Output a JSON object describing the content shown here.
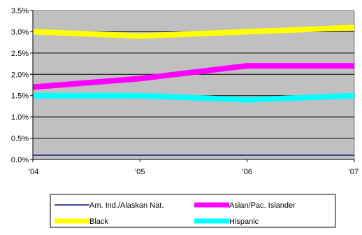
{
  "chart_data": {
    "type": "line",
    "title": "",
    "xlabel": "",
    "ylabel": "",
    "categories": [
      "'04",
      "'05",
      "'06",
      "'07"
    ],
    "ylim": [
      0,
      3.5
    ],
    "y_ticks": [
      "0.0%",
      "0.5%",
      "1.0%",
      "1.5%",
      "2.0%",
      "2.5%",
      "3.0%",
      "3.5%"
    ],
    "grid": "horizontal",
    "plot_background": "#c0c0c0",
    "legend_position": "bottom",
    "series": [
      {
        "name": "Am. Ind./Alaskan Nat.",
        "values": [
          0.1,
          0.1,
          0.1,
          0.1
        ],
        "color": "#000080",
        "width": "thin"
      },
      {
        "name": "Asian/Pac. Islander",
        "values": [
          1.7,
          1.9,
          2.2,
          2.2
        ],
        "color": "#ff00ff",
        "width": "thick"
      },
      {
        "name": "Black",
        "values": [
          3.0,
          2.9,
          3.0,
          3.1
        ],
        "color": "#ffff00",
        "width": "thick"
      },
      {
        "name": "Hispanic",
        "values": [
          1.5,
          1.5,
          1.4,
          1.5
        ],
        "color": "#00ffff",
        "width": "thick"
      }
    ]
  }
}
